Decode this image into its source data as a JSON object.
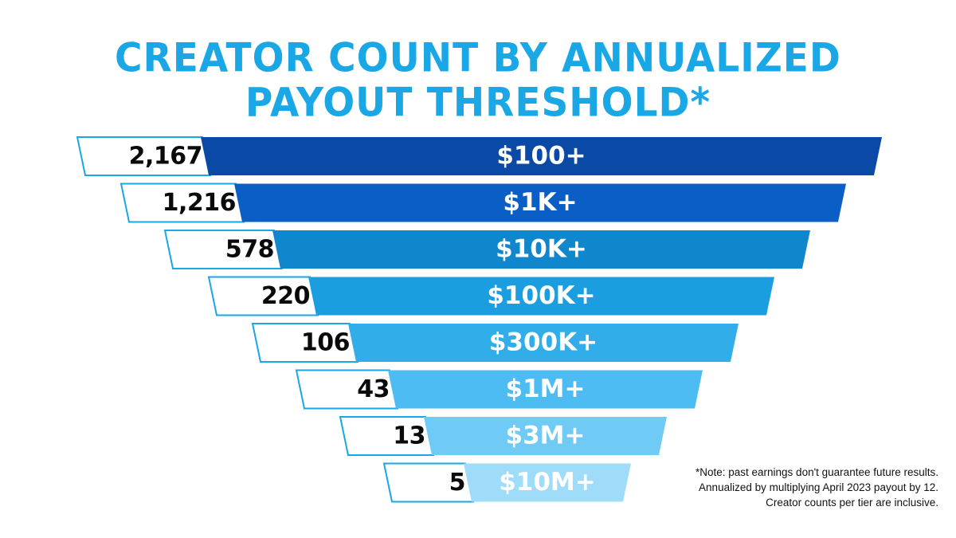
{
  "title": {
    "line1": "CREATOR COUNT BY ANNUALIZED",
    "line2": "PAYOUT THRESHOLD*"
  },
  "chart_data": {
    "type": "bar",
    "categories": [
      "$100+",
      "$1K+",
      "$10K+",
      "$100K+",
      "$300K+",
      "$1M+",
      "$3M+",
      "$10M+"
    ],
    "values": [
      2167,
      1216,
      578,
      220,
      106,
      43,
      13,
      5
    ],
    "value_labels": [
      "2,167",
      "1,216",
      "578",
      "220",
      "106",
      "43",
      "13",
      "5"
    ],
    "colors": [
      "#0a49a6",
      "#0b5ec5",
      "#1086cd",
      "#1b9ee0",
      "#31ade9",
      "#4cbcf2",
      "#6fcaf5",
      "#9fdcfa"
    ],
    "label_box_border": "#1aa7e6",
    "label_box_fill": "#ffffff"
  },
  "note": "*Note: past earnings don't guarantee future results. Annualized by multiplying April 2023 payout by 12. Creator counts per tier are inclusive."
}
